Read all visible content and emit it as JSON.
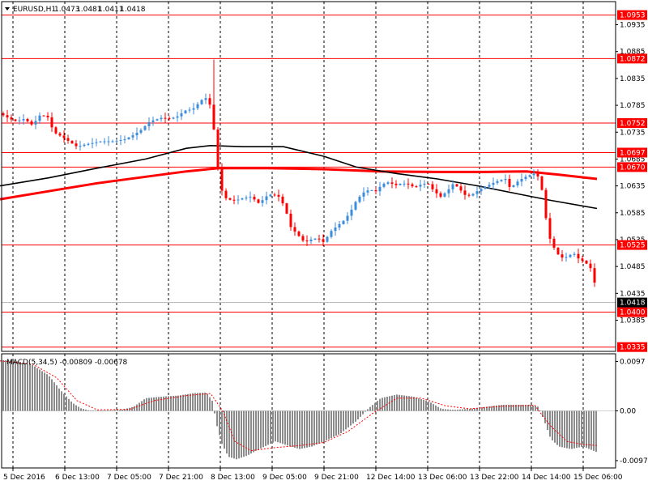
{
  "header": {
    "symbol_label": "EURUSD,H1",
    "ohlc": [
      "1.0473",
      "1.0481",
      "1.0411",
      "1.0418"
    ],
    "dropdown_icon": "triangle-down-icon"
  },
  "indicator": {
    "label": "MACD(5,34,5) -0.00809 -0.00678"
  },
  "colors": {
    "bull": "#3c8ddb",
    "bear": "#ff0000",
    "level": "#ff0000",
    "ma_fast": "#ff0000",
    "ma_slow": "#000000",
    "histogram": "#8c8c8c",
    "signal": "#ff0000",
    "current_price_bg": "#000000"
  },
  "chart_data": [
    {
      "type": "candlestick",
      "title": "EURUSD,H1",
      "ylim": [
        1.0327,
        1.0978
      ],
      "y_tick_labels": [
        "1.0935",
        "1.0885",
        "1.0835",
        "1.0785",
        "1.0735",
        "1.0685",
        "1.0635",
        "1.0585",
        "1.0535",
        "1.0485",
        "1.0435",
        "1.0385"
      ],
      "y_tick_values": [
        1.0935,
        1.0885,
        1.0835,
        1.0785,
        1.0735,
        1.0685,
        1.0635,
        1.0585,
        1.0535,
        1.0485,
        1.0435,
        1.0385
      ],
      "horizontal_levels": [
        {
          "value": 1.0953,
          "label": "1.0953"
        },
        {
          "value": 1.0872,
          "label": "1.0872"
        },
        {
          "value": 1.0752,
          "label": "1.0752"
        },
        {
          "value": 1.0697,
          "label": "1.0697"
        },
        {
          "value": 1.067,
          "label": "1.0670"
        },
        {
          "value": 1.0525,
          "label": "1.0525"
        },
        {
          "value": 1.04,
          "label": "1.0400"
        },
        {
          "value": 1.0335,
          "label": "1.0335"
        }
      ],
      "current_price": {
        "value": 1.0418,
        "label": "1.0418"
      },
      "x_labels": [
        "5 Dec 2016",
        "6 Dec 13:00",
        "7 Dec 05:00",
        "7 Dec 21:00",
        "8 Dec 13:00",
        "9 Dec 05:00",
        "9 Dec 21:00",
        "12 Dec 14:00",
        "13 Dec 06:00",
        "13 Dec 22:00",
        "14 Dec 14:00",
        "15 Dec 06:00"
      ],
      "grid": "vertical-dashed",
      "close_path": [
        [
          0,
          1.077
        ],
        [
          12,
          1.076
        ],
        [
          20,
          1.0755
        ],
        [
          30,
          1.076
        ],
        [
          40,
          1.0748
        ],
        [
          50,
          1.0768
        ],
        [
          60,
          1.0762
        ],
        [
          66,
          1.0735
        ],
        [
          75,
          1.0728
        ],
        [
          85,
          1.0718
        ],
        [
          95,
          1.0708
        ],
        [
          105,
          1.0712
        ],
        [
          115,
          1.0715
        ],
        [
          125,
          1.0718
        ],
        [
          140,
          1.0718
        ],
        [
          155,
          1.0722
        ],
        [
          165,
          1.073
        ],
        [
          175,
          1.074
        ],
        [
          185,
          1.0755
        ],
        [
          200,
          1.0762
        ],
        [
          210,
          1.076
        ],
        [
          220,
          1.0765
        ],
        [
          228,
          1.0775
        ],
        [
          238,
          1.0778
        ],
        [
          246,
          1.079
        ],
        [
          252,
          1.08
        ],
        [
          258,
          1.0795
        ],
        [
          262,
          1.076
        ],
        [
          266,
          1.072
        ],
        [
          270,
          1.065
        ],
        [
          275,
          1.062
        ],
        [
          280,
          1.061
        ],
        [
          290,
          1.0608
        ],
        [
          300,
          1.0612
        ],
        [
          310,
          1.0615
        ],
        [
          320,
          1.0602
        ],
        [
          328,
          1.0615
        ],
        [
          336,
          1.062
        ],
        [
          344,
          1.0615
        ],
        [
          352,
          1.0595
        ],
        [
          358,
          1.056
        ],
        [
          364,
          1.055
        ],
        [
          370,
          1.054
        ],
        [
          376,
          1.053
        ],
        [
          384,
          1.0535
        ],
        [
          392,
          1.0538
        ],
        [
          400,
          1.053
        ],
        [
          408,
          1.055
        ],
        [
          416,
          1.056
        ],
        [
          424,
          1.057
        ],
        [
          432,
          1.0585
        ],
        [
          440,
          1.0608
        ],
        [
          448,
          1.0622
        ],
        [
          456,
          1.0628
        ],
        [
          464,
          1.0625
        ],
        [
          472,
          1.0638
        ],
        [
          480,
          1.0642
        ],
        [
          488,
          1.0636
        ],
        [
          496,
          1.064
        ],
        [
          504,
          1.0638
        ],
        [
          512,
          1.0632
        ],
        [
          520,
          1.0638
        ],
        [
          528,
          1.064
        ],
        [
          536,
          1.0625
        ],
        [
          544,
          1.0615
        ],
        [
          552,
          1.0625
        ],
        [
          560,
          1.064
        ],
        [
          568,
          1.0628
        ],
        [
          576,
          1.0615
        ],
        [
          584,
          1.062
        ],
        [
          592,
          1.0628
        ],
        [
          600,
          1.0634
        ],
        [
          608,
          1.064
        ],
        [
          616,
          1.0645
        ],
        [
          624,
          1.0648
        ],
        [
          630,
          1.063
        ],
        [
          638,
          1.0642
        ],
        [
          646,
          1.065
        ],
        [
          654,
          1.0655
        ],
        [
          660,
          1.0658
        ],
        [
          666,
          1.065
        ],
        [
          670,
          1.062
        ],
        [
          674,
          1.0575
        ],
        [
          678,
          1.054
        ],
        [
          684,
          1.052
        ],
        [
          690,
          1.0505
        ],
        [
          696,
          1.05
        ],
        [
          702,
          1.0505
        ],
        [
          708,
          1.051
        ],
        [
          714,
          1.05
        ],
        [
          720,
          1.0495
        ],
        [
          726,
          1.0488
        ],
        [
          730,
          1.048
        ],
        [
          734,
          1.0455
        ],
        [
          737,
          1.0418
        ]
      ],
      "series": [
        {
          "kind": "moving-average-fast",
          "points": [
            [
              0,
              1.061
            ],
            [
              60,
              1.0625
            ],
            [
              120,
              1.064
            ],
            [
              180,
              1.0652
            ],
            [
              230,
              1.0662
            ],
            [
              270,
              1.0668
            ],
            [
              330,
              1.0668
            ],
            [
              400,
              1.0666
            ],
            [
              470,
              1.0662
            ],
            [
              540,
              1.0661
            ],
            [
              600,
              1.0661
            ],
            [
              650,
              1.0662
            ],
            [
              690,
              1.0656
            ],
            [
              737,
              1.0648
            ]
          ]
        },
        {
          "kind": "moving-average-slow",
          "points": [
            [
              0,
              1.0635
            ],
            [
              60,
              1.065
            ],
            [
              120,
              1.0668
            ],
            [
              180,
              1.0685
            ],
            [
              230,
              1.0705
            ],
            [
              260,
              1.071
            ],
            [
              300,
              1.0708
            ],
            [
              350,
              1.0708
            ],
            [
              400,
              1.069
            ],
            [
              440,
              1.067
            ],
            [
              490,
              1.0658
            ],
            [
              540,
              1.0648
            ],
            [
              590,
              1.0635
            ],
            [
              640,
              1.062
            ],
            [
              680,
              1.0608
            ],
            [
              737,
              1.0593
            ]
          ]
        }
      ]
    },
    {
      "type": "bar",
      "title": "MACD(5,34,5)",
      "ylim": [
        -0.0112,
        0.0112
      ],
      "y_tick_labels": [
        "0.0097",
        "0.00",
        "-0.00976"
      ],
      "y_tick_values": [
        0.0097,
        0.0,
        -0.00976
      ],
      "histogram": [
        [
          0,
          0.01
        ],
        [
          20,
          0.0098
        ],
        [
          40,
          0.009
        ],
        [
          60,
          0.007
        ],
        [
          75,
          0.004
        ],
        [
          90,
          0.0015
        ],
        [
          100,
          0.0005
        ],
        [
          110,
          0.0001
        ],
        [
          130,
          0.0001
        ],
        [
          150,
          0.0002
        ],
        [
          165,
          0.0008
        ],
        [
          180,
          0.0025
        ],
        [
          200,
          0.0028
        ],
        [
          220,
          0.003
        ],
        [
          240,
          0.0035
        ],
        [
          255,
          0.0036
        ],
        [
          262,
          0.002
        ],
        [
          268,
          -0.003
        ],
        [
          274,
          -0.0065
        ],
        [
          282,
          -0.009
        ],
        [
          292,
          -0.0095
        ],
        [
          305,
          -0.0088
        ],
        [
          320,
          -0.0075
        ],
        [
          340,
          -0.006
        ],
        [
          355,
          -0.0068
        ],
        [
          370,
          -0.0075
        ],
        [
          385,
          -0.007
        ],
        [
          400,
          -0.006
        ],
        [
          420,
          -0.0045
        ],
        [
          440,
          -0.002
        ],
        [
          455,
          0.0005
        ],
        [
          470,
          0.0025
        ],
        [
          490,
          0.0032
        ],
        [
          510,
          0.0028
        ],
        [
          530,
          0.0018
        ],
        [
          545,
          0.0004
        ],
        [
          560,
          0.0002
        ],
        [
          580,
          0.0004
        ],
        [
          600,
          0.0008
        ],
        [
          620,
          0.0012
        ],
        [
          640,
          0.0012
        ],
        [
          655,
          0.0012
        ],
        [
          665,
          0.0008
        ],
        [
          672,
          -0.002
        ],
        [
          680,
          -0.0055
        ],
        [
          690,
          -0.007
        ],
        [
          705,
          -0.0075
        ],
        [
          720,
          -0.007
        ],
        [
          737,
          -0.0081
        ]
      ],
      "signal": [
        [
          0,
          0.0098
        ],
        [
          40,
          0.0092
        ],
        [
          70,
          0.0065
        ],
        [
          95,
          0.002
        ],
        [
          120,
          0.0002
        ],
        [
          160,
          0.0003
        ],
        [
          190,
          0.002
        ],
        [
          230,
          0.003
        ],
        [
          260,
          0.0034
        ],
        [
          275,
          0.0
        ],
        [
          290,
          -0.006
        ],
        [
          310,
          -0.0078
        ],
        [
          340,
          -0.0072
        ],
        [
          370,
          -0.0068
        ],
        [
          400,
          -0.0062
        ],
        [
          430,
          -0.004
        ],
        [
          460,
          -0.0005
        ],
        [
          490,
          0.0025
        ],
        [
          520,
          0.0025
        ],
        [
          550,
          0.001
        ],
        [
          580,
          0.0004
        ],
        [
          620,
          0.0009
        ],
        [
          660,
          0.0011
        ],
        [
          680,
          -0.003
        ],
        [
          700,
          -0.006
        ],
        [
          720,
          -0.0066
        ],
        [
          737,
          -0.0068
        ]
      ]
    }
  ]
}
